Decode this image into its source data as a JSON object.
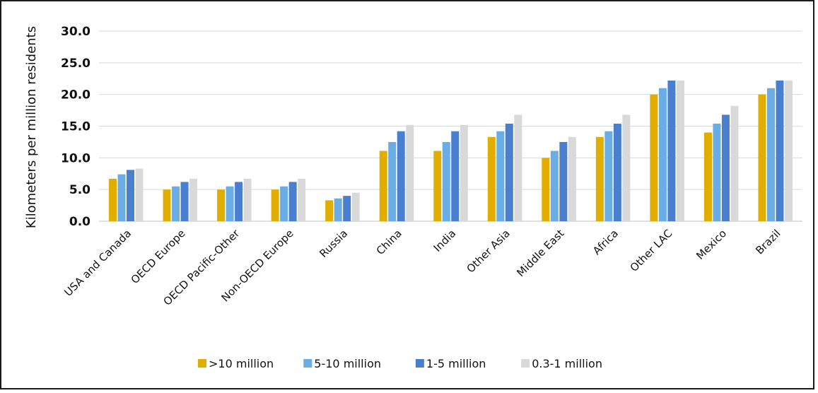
{
  "chart_data": {
    "type": "bar",
    "title": "",
    "xlabel": "",
    "ylabel": "Kilometers per million residents",
    "ylim": [
      0,
      30
    ],
    "yticks": [
      "0.0",
      "5.0",
      "10.0",
      "15.0",
      "20.0",
      "25.0",
      "30.0"
    ],
    "grid": true,
    "legend_position": "bottom",
    "categories": [
      "USA and Canada",
      "OECD Europe",
      "OECD Pacific-Other",
      "Non-OECD Europe",
      "Russia",
      "China",
      "India",
      "Other Asia",
      "Middle East",
      "Africa",
      "Other LAC",
      "Mexico",
      "Brazil"
    ],
    "series": [
      {
        "name": ">10 million",
        "color": "#E1AD01",
        "values": [
          6.7,
          5.0,
          5.0,
          5.0,
          3.3,
          11.1,
          11.1,
          13.3,
          10.0,
          13.3,
          20.0,
          14.0,
          20.0
        ]
      },
      {
        "name": "5-10 million",
        "color": "#6AADE4",
        "values": [
          7.4,
          5.5,
          5.5,
          5.5,
          3.6,
          12.5,
          12.5,
          14.2,
          11.1,
          14.2,
          21.0,
          15.4,
          21.0
        ]
      },
      {
        "name": "1-5 million",
        "color": "#4A7FCF",
        "values": [
          8.1,
          6.2,
          6.2,
          6.2,
          4.0,
          14.2,
          14.2,
          15.4,
          12.5,
          15.4,
          22.2,
          16.8,
          22.2
        ]
      },
      {
        "name": "0.3-1 million",
        "color": "#D9D9D9",
        "values": [
          8.3,
          6.7,
          6.7,
          6.7,
          4.5,
          15.2,
          15.2,
          16.8,
          13.3,
          16.8,
          22.2,
          18.2,
          22.2
        ]
      }
    ]
  }
}
